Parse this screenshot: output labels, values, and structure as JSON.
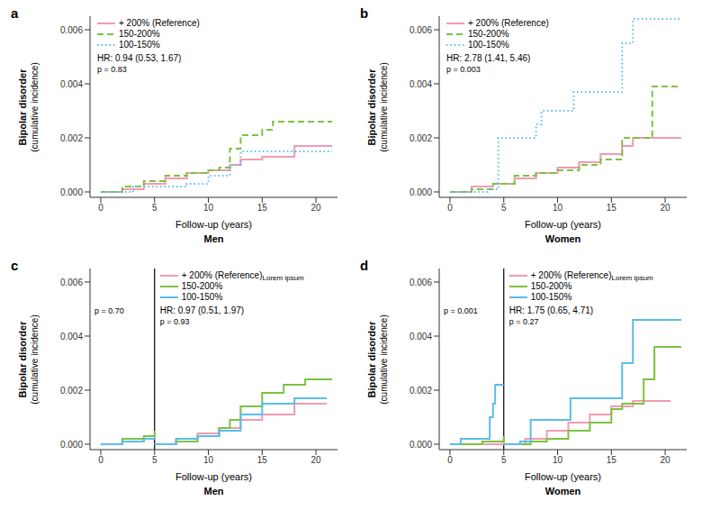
{
  "chart_data": [
    {
      "type": "line",
      "title": "a",
      "ylabel": [
        "Bipolar disorder",
        "(cumulative incidence)"
      ],
      "xlabel": "Follow-up (years)",
      "subtitle": "Men",
      "legend": "upper left",
      "xlim": [
        -1,
        22
      ],
      "xticks": [
        0,
        5,
        10,
        15,
        20
      ],
      "ylim": [
        -0.0002,
        0.0065
      ],
      "yticks": [
        {
          "value": 0,
          "label": "0.000"
        },
        {
          "value": 0.002,
          "label": "0.002"
        },
        {
          "value": 0.004,
          "label": "0.004"
        },
        {
          "value": 0.006,
          "label": "0.006"
        }
      ],
      "annotations": [
        "HR: 0.94 (0.53, 1.67)",
        "p = 0.83"
      ],
      "series": [
        {
          "name": "+ 200% (Reference)",
          "color": "#f29bb0",
          "line_style": "solid",
          "x": [
            0,
            2,
            4,
            6,
            8,
            10,
            12,
            13,
            15,
            18,
            21.5
          ],
          "values": [
            0,
            0.0001,
            0.0003,
            0.0005,
            0.0007,
            0.0008,
            0.001,
            0.0012,
            0.0013,
            0.0017,
            0.0017
          ]
        },
        {
          "name": "150-200%",
          "color": "#7cc241",
          "line_style": "dashed",
          "x": [
            0,
            2,
            4,
            6,
            8,
            10,
            11,
            12,
            13,
            15,
            16,
            21.5
          ],
          "values": [
            0,
            0.0002,
            0.0004,
            0.0006,
            0.0007,
            0.0008,
            0.0009,
            0.0016,
            0.0021,
            0.0023,
            0.0026,
            0.0026
          ]
        },
        {
          "name": "100-150%",
          "color": "#5bbde8",
          "line_style": "dotted",
          "x": [
            0,
            3,
            6,
            8,
            10,
            12,
            13,
            21.5
          ],
          "values": [
            0,
            0.0002,
            0.0002,
            0.0003,
            0.0006,
            0.001,
            0.0015,
            0.0015
          ]
        }
      ]
    },
    {
      "type": "line",
      "title": "b",
      "ylabel": [
        "Bipolar disorder",
        "(cumulative incidence)"
      ],
      "xlabel": "Follow-up (years)",
      "subtitle": "Women",
      "legend": "upper left",
      "xlim": [
        -1,
        22
      ],
      "xticks": [
        0,
        5,
        10,
        15,
        20
      ],
      "ylim": [
        -0.0002,
        0.0065
      ],
      "yticks": [
        {
          "value": 0,
          "label": "0.000"
        },
        {
          "value": 0.002,
          "label": "0.002"
        },
        {
          "value": 0.004,
          "label": "0.004"
        },
        {
          "value": 0.006,
          "label": "0.006"
        }
      ],
      "annotations": [
        "HR: 2.78 (1.41, 5.46)",
        "p = 0.003"
      ],
      "series": [
        {
          "name": "+ 200% (Reference)",
          "color": "#f29bb0",
          "line_style": "solid",
          "x": [
            0,
            2,
            4,
            6,
            8,
            10,
            12,
            14,
            16,
            17,
            21.5
          ],
          "values": [
            0,
            0.0002,
            0.0003,
            0.0005,
            0.0007,
            0.0009,
            0.0011,
            0.0014,
            0.0017,
            0.002,
            0.002
          ]
        },
        {
          "name": "150-200%",
          "color": "#7cc241",
          "line_style": "dashed",
          "x": [
            0,
            2,
            4,
            6,
            8,
            10,
            12,
            14,
            16,
            18.8,
            21.5
          ],
          "values": [
            0,
            0.0001,
            0.0003,
            0.0006,
            0.0007,
            0.0008,
            0.001,
            0.0012,
            0.002,
            0.0039,
            0.0039
          ]
        },
        {
          "name": "100-150%",
          "color": "#5bbde8",
          "line_style": "dotted",
          "x": [
            0,
            3.5,
            4.5,
            8,
            8.5,
            11.5,
            16,
            17,
            21.5
          ],
          "values": [
            0,
            0.0001,
            0.002,
            0.0025,
            0.003,
            0.0037,
            0.0055,
            0.0064,
            0.0064
          ]
        }
      ]
    },
    {
      "type": "line",
      "title": "c",
      "ylabel": [
        "Bipolar disorder",
        "(cumulative incidence)"
      ],
      "xlabel": "Follow-up (years)",
      "subtitle": "Men",
      "legend": "upper left",
      "legend_note": "Lorem ipsum",
      "xlim": [
        -1,
        22
      ],
      "xticks": [
        0,
        5,
        10,
        15,
        20
      ],
      "ylim": [
        -0.0002,
        0.0065
      ],
      "yticks": [
        {
          "value": 0,
          "label": "0.000"
        },
        {
          "value": 0.002,
          "label": "0.002"
        },
        {
          "value": 0.004,
          "label": "0.004"
        },
        {
          "value": 0.006,
          "label": "0.006"
        }
      ],
      "vline": 5,
      "annotations_before": [
        "p = 0.70"
      ],
      "annotations": [
        "HR: 0.97 (0.51, 1.97)",
        "p = 0.93"
      ],
      "series": [
        {
          "name": "+ 200% (Reference)",
          "color": "#f29bb0",
          "line_style": "solid",
          "x": [
            0,
            2,
            4,
            5,
            5,
            5,
            7,
            9,
            11,
            13,
            15,
            18,
            21
          ],
          "values": [
            0,
            0.0001,
            0.0002,
            0.0002,
            null,
            0,
            0.0002,
            0.0004,
            0.0006,
            0.0009,
            0.0011,
            0.0015,
            0.0015
          ]
        },
        {
          "name": "150-200%",
          "color": "#7cc241",
          "line_style": "solid",
          "x": [
            0,
            2,
            4,
            5,
            5,
            5,
            7,
            9,
            11,
            12,
            13,
            15,
            17,
            19,
            21.5
          ],
          "values": [
            0,
            0.0002,
            0.0003,
            0.0005,
            null,
            0,
            0.0001,
            0.0003,
            0.0006,
            0.0009,
            0.0014,
            0.0019,
            0.0022,
            0.0024,
            0.0024
          ]
        },
        {
          "name": "100-150%",
          "color": "#5bbde8",
          "line_style": "solid",
          "x": [
            0,
            2,
            4,
            5,
            5,
            5,
            7,
            9,
            11,
            13,
            15,
            18,
            21
          ],
          "values": [
            0,
            0.0001,
            0.0002,
            0.0003,
            null,
            0,
            0.0002,
            0.0003,
            0.0005,
            0.0011,
            0.0015,
            0.0017,
            0.0017
          ]
        }
      ]
    },
    {
      "type": "line",
      "title": "d",
      "ylabel": [
        "Bipolar disorder",
        "(cumulative incidence)"
      ],
      "xlabel": "Follow-up (years)",
      "subtitle": "Women",
      "legend": "upper left",
      "legend_note": "Lorem ipsum",
      "xlim": [
        -1,
        22
      ],
      "xticks": [
        0,
        5,
        10,
        15,
        20
      ],
      "ylim": [
        -0.0002,
        0.0065
      ],
      "yticks": [
        {
          "value": 0,
          "label": "0.000"
        },
        {
          "value": 0.002,
          "label": "0.002"
        },
        {
          "value": 0.004,
          "label": "0.004"
        },
        {
          "value": 0.006,
          "label": "0.006"
        }
      ],
      "vline": 5,
      "annotations_before": [
        "p = 0.001"
      ],
      "annotations": [
        "HR: 1.75 (0.65, 4.71)",
        "p = 0.27"
      ],
      "series": [
        {
          "name": "+ 200% (Reference)",
          "color": "#f29bb0",
          "line_style": "solid",
          "x": [
            0,
            5,
            5,
            5,
            7,
            9,
            11,
            13,
            15,
            17,
            20.5
          ],
          "values": [
            0,
            0.0002,
            null,
            0,
            0.0002,
            0.0005,
            0.0008,
            0.0011,
            0.0014,
            0.0016,
            0.0016
          ]
        },
        {
          "name": "150-200%",
          "color": "#7cc241",
          "line_style": "solid",
          "x": [
            0,
            3,
            5,
            5,
            5,
            7.5,
            9,
            11,
            13,
            15,
            16,
            18,
            19,
            21.5
          ],
          "values": [
            0,
            0.0001,
            0.0003,
            null,
            0,
            0.0001,
            0.0002,
            0.0005,
            0.0008,
            0.0013,
            0.0015,
            0.0024,
            0.0036,
            0.0036
          ]
        },
        {
          "name": "100-150%",
          "color": "#5bbde8",
          "line_style": "solid",
          "x": [
            0,
            1,
            3.7,
            4,
            4.2,
            5,
            5,
            5,
            6.5,
            7.5,
            11.2,
            16,
            17,
            21.5
          ],
          "values": [
            0,
            0.0002,
            0.001,
            0.0015,
            0.0022,
            0.0022,
            null,
            0,
            0.0001,
            0.0009,
            0.0017,
            0.003,
            0.0046,
            0.0046
          ]
        }
      ]
    }
  ]
}
